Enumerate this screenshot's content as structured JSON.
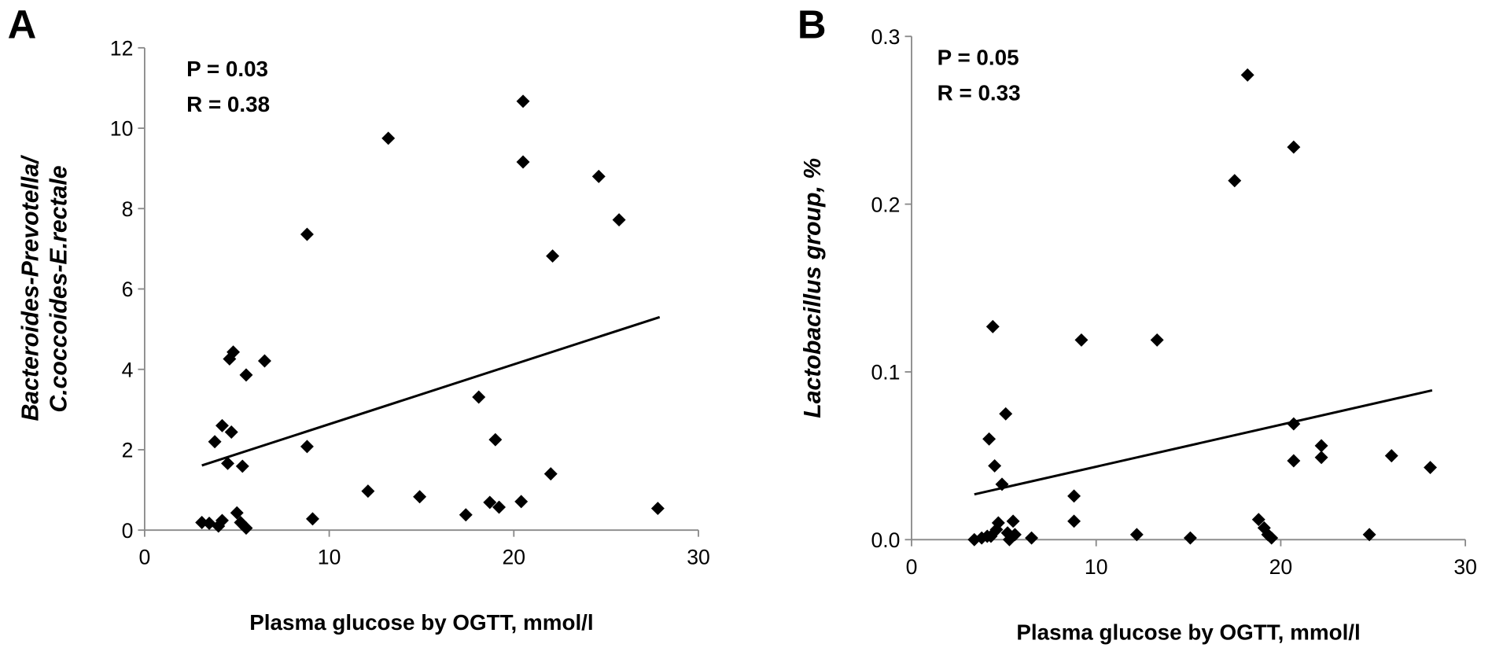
{
  "chart_data": [
    {
      "type": "scatter",
      "panel": "A",
      "annotations": [
        "P = 0.03",
        "R = 0.38"
      ],
      "xlabel": "Plasma glucose by OGTT, mmol/l",
      "ylabel": [
        "Bacteroides-Prevotella/",
        "C.coccoides-E.rectale"
      ],
      "xlim": [
        0,
        30
      ],
      "xticks": [
        0,
        10,
        20,
        30
      ],
      "ylim": [
        0,
        12
      ],
      "yticks": [
        0,
        2,
        4,
        6,
        8,
        10,
        12
      ],
      "color": "#000000",
      "x": [
        3.1,
        3.5,
        3.8,
        4.0,
        4.2,
        4.2,
        4.5,
        4.6,
        4.7,
        4.8,
        5.0,
        5.2,
        5.3,
        5.5,
        5.5,
        6.5,
        8.8,
        8.8,
        9.1,
        12.1,
        13.2,
        14.9,
        17.4,
        18.1,
        18.7,
        19.0,
        19.2,
        20.4,
        20.5,
        20.5,
        22.0,
        22.1,
        24.6,
        25.7,
        27.8
      ],
      "values": [
        0.19,
        0.17,
        2.2,
        0.1,
        2.6,
        0.24,
        1.66,
        4.26,
        2.44,
        4.43,
        0.43,
        0.19,
        1.59,
        3.86,
        0.05,
        4.21,
        7.36,
        2.08,
        0.28,
        0.97,
        9.75,
        0.83,
        0.38,
        3.31,
        0.69,
        2.25,
        0.57,
        0.71,
        10.67,
        9.16,
        1.4,
        6.82,
        8.8,
        7.72,
        0.54
      ],
      "trendline": {
        "x": [
          3.1,
          27.9
        ],
        "values": [
          1.61,
          5.3
        ]
      }
    },
    {
      "type": "scatter",
      "panel": "B",
      "annotations": [
        "P = 0.05",
        "R = 0.33"
      ],
      "xlabel": "Plasma glucose by OGTT, mmol/l",
      "ylabel": "Lactobacillus group, %",
      "xlim": [
        0,
        30
      ],
      "xticks": [
        0,
        10,
        20,
        30
      ],
      "ylim": [
        0,
        0.3
      ],
      "yticks": [
        {
          "value": 0,
          "label": "0.0"
        },
        0.1,
        0.2,
        0.3
      ],
      "color": "#000000",
      "x": [
        3.4,
        3.8,
        4.1,
        4.2,
        4.3,
        4.4,
        4.5,
        4.6,
        4.7,
        4.9,
        5.1,
        5.2,
        5.3,
        5.5,
        5.6,
        6.5,
        8.8,
        8.8,
        9.2,
        12.2,
        13.3,
        15.1,
        17.5,
        18.2,
        18.8,
        19.1,
        19.3,
        19.5,
        20.7,
        20.7,
        20.7,
        22.2,
        22.2,
        24.8,
        26.0,
        28.1
      ],
      "values": [
        0.0,
        0.001,
        0.002,
        0.06,
        0.002,
        0.127,
        0.044,
        0.006,
        0.01,
        0.033,
        0.075,
        0.004,
        0.0,
        0.011,
        0.003,
        0.001,
        0.026,
        0.011,
        0.119,
        0.003,
        0.119,
        0.001,
        0.214,
        0.277,
        0.012,
        0.007,
        0.003,
        0.001,
        0.234,
        0.069,
        0.047,
        0.056,
        0.049,
        0.003,
        0.05,
        0.043
      ],
      "trendline": {
        "x": [
          3.4,
          28.2
        ],
        "values": [
          0.027,
          0.089
        ]
      }
    }
  ]
}
